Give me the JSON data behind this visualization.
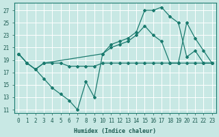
{
  "xlabel": "Humidex (Indice chaleur)",
  "bg_color": "#c8e8e4",
  "grid_color": "#ffffff",
  "line_color": "#1a7a6e",
  "xlim": [
    -0.5,
    23.5
  ],
  "ylim": [
    10.5,
    28.2
  ],
  "xticks": [
    0,
    1,
    2,
    3,
    4,
    5,
    6,
    7,
    8,
    9,
    10,
    11,
    12,
    13,
    14,
    15,
    16,
    17,
    18,
    19,
    20,
    21,
    22,
    23
  ],
  "yticks": [
    11,
    13,
    15,
    17,
    19,
    21,
    23,
    25,
    27
  ],
  "line1_x": [
    0,
    1,
    2,
    3,
    4,
    5,
    6,
    7,
    8,
    9,
    10,
    11,
    12,
    13,
    14,
    15,
    16,
    17,
    18,
    19,
    20,
    21,
    22,
    23
  ],
  "line1_y": [
    20.0,
    18.5,
    17.5,
    18.5,
    18.5,
    18.5,
    18.0,
    18.0,
    18.0,
    18.0,
    18.5,
    18.5,
    18.5,
    18.5,
    18.5,
    18.5,
    18.5,
    18.5,
    18.5,
    18.5,
    18.5,
    18.5,
    18.5,
    18.5
  ],
  "line2_x": [
    0,
    1,
    2,
    3,
    4,
    5,
    6,
    7,
    8,
    9,
    10,
    11,
    12,
    13,
    14,
    15,
    16,
    17,
    18,
    19,
    20,
    21,
    22,
    23
  ],
  "line2_y": [
    20.0,
    18.5,
    17.5,
    16.0,
    14.5,
    13.5,
    12.5,
    11.0,
    15.5,
    13.0,
    20.0,
    21.5,
    22.0,
    22.5,
    23.5,
    27.0,
    27.0,
    27.5,
    26.0,
    25.0,
    19.5,
    20.5,
    18.5,
    18.5
  ],
  "line3_x": [
    0,
    1,
    2,
    3,
    10,
    11,
    12,
    13,
    14,
    15,
    16,
    17,
    18,
    19,
    20,
    21,
    22,
    23
  ],
  "line3_y": [
    20.0,
    18.5,
    17.5,
    18.5,
    20.0,
    21.0,
    21.5,
    22.0,
    23.0,
    24.5,
    23.0,
    22.0,
    18.5,
    18.5,
    25.0,
    22.5,
    20.5,
    18.5
  ]
}
